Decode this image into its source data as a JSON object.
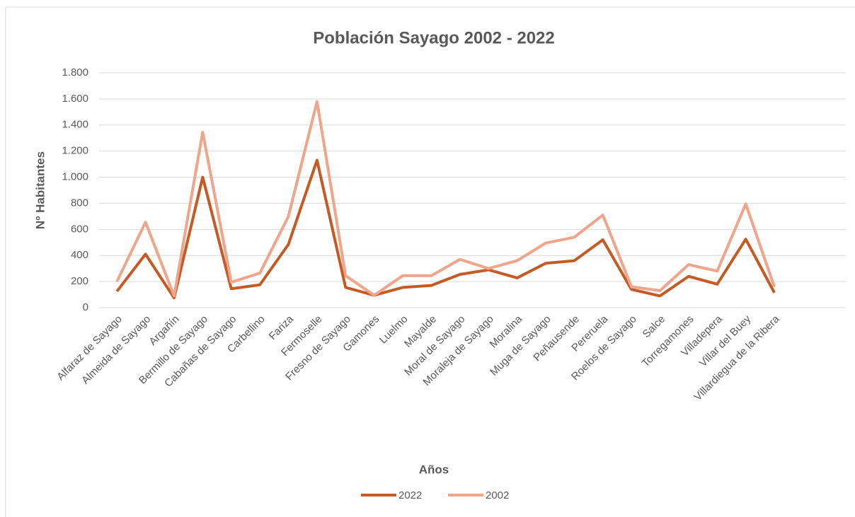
{
  "chart_data": {
    "type": "line",
    "title": "Población Sayago 2002 - 2022",
    "x_label": "Años",
    "y_label": "Nº Habitantes",
    "categories": [
      "Alfaraz de Sayago",
      "Almeida de Sayago",
      "Argañín",
      "Bermillo de Sayago",
      "Cabañas de Sayago",
      "Carbellino",
      "Fariza",
      "Fermoselle",
      "Fresno de Sayago",
      "Gamones",
      "Luelmo",
      "Mayalde",
      "Moral de Sayago",
      "Moraleja de Sayago",
      "Moralina",
      "Muga de Sayago",
      "Peñausende",
      "Pereruela",
      "Roelos de Sayago",
      "Salce",
      "Torregamones",
      "Villadepera",
      "Villar del Buey",
      "Villardiegua de la Ribera",
      null,
      null
    ],
    "series": [
      {
        "name": "2022",
        "color": "#c65a25",
        "values": [
          125,
          410,
          75,
          1000,
          145,
          175,
          485,
          1130,
          155,
          95,
          155,
          170,
          255,
          290,
          228,
          340,
          360,
          520,
          140,
          90,
          240,
          180,
          525,
          115,
          null,
          null
        ]
      },
      {
        "name": "2002",
        "color": "#f0a48c",
        "values": [
          200,
          655,
          90,
          1345,
          195,
          265,
          700,
          1580,
          245,
          95,
          245,
          245,
          370,
          300,
          360,
          495,
          540,
          710,
          160,
          130,
          330,
          280,
          795,
          160,
          null,
          null
        ]
      }
    ],
    "ylim": [
      0,
      1800
    ],
    "yticks": [
      0,
      200,
      400,
      600,
      800,
      {
        "value": 1000,
        "label": "1.000"
      },
      {
        "value": 1200,
        "label": "1.200"
      },
      {
        "value": 1400,
        "label": "1.400"
      },
      {
        "value": 1600,
        "label": "1.600"
      },
      {
        "value": 1800,
        "label": "1.800"
      }
    ],
    "grid": true,
    "legend": "bottom"
  }
}
